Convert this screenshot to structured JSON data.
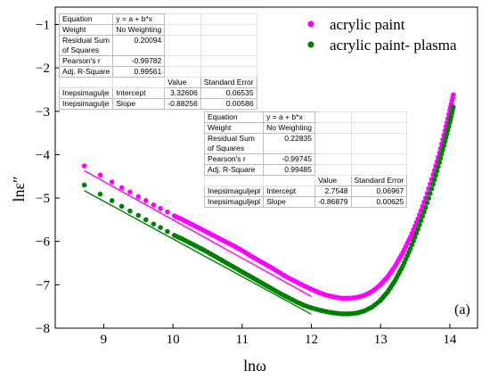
{
  "chart_data": {
    "type": "scatter",
    "title": "",
    "xlabel": "lnω",
    "ylabel": "lnε″",
    "xlim": [
      8.3,
      14.4
    ],
    "ylim": [
      -8.0,
      -0.6
    ],
    "xticks": [
      9,
      10,
      11,
      12,
      13,
      14
    ],
    "xtick_labels": [
      "9",
      "10",
      "11",
      "12",
      "13",
      "14"
    ],
    "yticks": [
      -8,
      -7,
      -6,
      -5,
      -4,
      -3,
      -2,
      -1
    ],
    "ytick_labels": [
      "−8",
      "−7",
      "−6",
      "−5",
      "−4",
      "−3",
      "−2",
      "−1"
    ],
    "panel_label": "(a)",
    "legend_position": "top-right",
    "series": [
      {
        "name": "acrylic paint",
        "color": "#ff00ff",
        "points": [
          [
            8.72,
            -4.26
          ],
          [
            8.95,
            -4.47
          ],
          [
            9.12,
            -4.63
          ],
          [
            9.26,
            -4.76
          ],
          [
            9.38,
            -4.86
          ],
          [
            9.5,
            -4.97
          ],
          [
            9.61,
            -5.06
          ],
          [
            9.72,
            -5.16
          ],
          [
            9.82,
            -5.24
          ],
          [
            9.92,
            -5.32
          ],
          [
            10.02,
            -5.41
          ],
          [
            10.13,
            -5.49
          ],
          [
            10.24,
            -5.58
          ],
          [
            10.35,
            -5.67
          ],
          [
            10.46,
            -5.76
          ],
          [
            10.57,
            -5.85
          ],
          [
            10.68,
            -5.94
          ],
          [
            10.79,
            -6.03
          ],
          [
            10.9,
            -6.12
          ],
          [
            11.01,
            -6.22
          ],
          [
            11.12,
            -6.33
          ],
          [
            11.23,
            -6.43
          ],
          [
            11.34,
            -6.53
          ],
          [
            11.45,
            -6.63
          ],
          [
            11.56,
            -6.74
          ],
          [
            11.67,
            -6.84
          ],
          [
            11.78,
            -6.93
          ],
          [
            11.89,
            -7.02
          ],
          [
            12.0,
            -7.1
          ],
          [
            12.11,
            -7.18
          ],
          [
            12.22,
            -7.24
          ],
          [
            12.33,
            -7.28
          ],
          [
            12.44,
            -7.31
          ],
          [
            12.55,
            -7.31
          ],
          [
            12.66,
            -7.29
          ],
          [
            12.77,
            -7.24
          ],
          [
            12.88,
            -7.15
          ],
          [
            12.99,
            -7.01
          ],
          [
            13.1,
            -6.82
          ],
          [
            13.21,
            -6.57
          ],
          [
            13.32,
            -6.26
          ],
          [
            13.43,
            -5.9
          ],
          [
            13.54,
            -5.48
          ],
          [
            13.65,
            -5.0
          ],
          [
            13.76,
            -4.46
          ],
          [
            13.85,
            -3.96
          ],
          [
            13.93,
            -3.45
          ],
          [
            14.0,
            -2.98
          ],
          [
            14.05,
            -2.62
          ]
        ],
        "fit": {
          "x": [
            8.72,
            12.0
          ],
          "y": [
            -4.37,
            -7.27
          ]
        }
      },
      {
        "name": "acrylic paint- plasma",
        "color": "#008000",
        "points": [
          [
            8.72,
            -4.7
          ],
          [
            8.95,
            -4.91
          ],
          [
            9.12,
            -5.06
          ],
          [
            9.26,
            -5.19
          ],
          [
            9.38,
            -5.3
          ],
          [
            9.5,
            -5.4
          ],
          [
            9.61,
            -5.5
          ],
          [
            9.72,
            -5.6
          ],
          [
            9.82,
            -5.68
          ],
          [
            9.92,
            -5.77
          ],
          [
            10.02,
            -5.86
          ],
          [
            10.13,
            -5.94
          ],
          [
            10.24,
            -6.03
          ],
          [
            10.35,
            -6.12
          ],
          [
            10.46,
            -6.21
          ],
          [
            10.57,
            -6.31
          ],
          [
            10.68,
            -6.41
          ],
          [
            10.79,
            -6.51
          ],
          [
            10.9,
            -6.61
          ],
          [
            11.01,
            -6.71
          ],
          [
            11.12,
            -6.81
          ],
          [
            11.23,
            -6.91
          ],
          [
            11.34,
            -7.01
          ],
          [
            11.45,
            -7.11
          ],
          [
            11.56,
            -7.21
          ],
          [
            11.67,
            -7.3
          ],
          [
            11.78,
            -7.39
          ],
          [
            11.89,
            -7.47
          ],
          [
            12.0,
            -7.53
          ],
          [
            12.11,
            -7.58
          ],
          [
            12.22,
            -7.62
          ],
          [
            12.33,
            -7.65
          ],
          [
            12.44,
            -7.67
          ],
          [
            12.55,
            -7.67
          ],
          [
            12.66,
            -7.65
          ],
          [
            12.77,
            -7.6
          ],
          [
            12.88,
            -7.51
          ],
          [
            12.99,
            -7.37
          ],
          [
            13.1,
            -7.17
          ],
          [
            13.21,
            -6.9
          ],
          [
            13.32,
            -6.57
          ],
          [
            13.43,
            -6.17
          ],
          [
            13.54,
            -5.72
          ],
          [
            13.65,
            -5.22
          ],
          [
            13.76,
            -4.68
          ],
          [
            13.85,
            -4.18
          ],
          [
            13.93,
            -3.7
          ],
          [
            14.0,
            -3.26
          ],
          [
            14.05,
            -2.9
          ]
        ],
        "fit": {
          "x": [
            8.72,
            12.0
          ],
          "y": [
            -4.83,
            -7.68
          ]
        }
      }
    ]
  },
  "fit_tables": [
    {
      "equation_label": "Equation",
      "equation": "y = a + b*x",
      "weight_label": "Weight",
      "weight": "No Weighting",
      "rss_label": "Residual Sum of Squares",
      "rss": "0.20094",
      "pearson_label": "Pearson's r",
      "pearson": "-0.99782",
      "adjr2_label": "Adj. R-Square",
      "adjr2": "0.99561",
      "value_header": "Value",
      "stderr_header": "Standard Error",
      "dataset": "Inepsimagulje",
      "intercept_label": "Intercept",
      "intercept": "3.32606",
      "intercept_err": "0.06535",
      "slope_label": "Slope",
      "slope": "-0.88256",
      "slope_err": "0.00586"
    },
    {
      "equation_label": "Equation",
      "equation": "y = a + b*x",
      "weight_label": "Weight",
      "weight": "No Weighting",
      "rss_label": "Residual Sum of Squares",
      "rss": "0.22835",
      "pearson_label": "Pearson's r",
      "pearson": "-0.99745",
      "adjr2_label": "Adj. R-Square",
      "adjr2": "0.99485",
      "value_header": "Value",
      "stderr_header": "Standard Error",
      "dataset": "Inepsimaguljepl",
      "intercept_label": "Intercept",
      "intercept": "2.7548",
      "intercept_err": "0.06967",
      "slope_label": "Slope",
      "slope": "-0.86879",
      "slope_err": "0.00625"
    }
  ]
}
